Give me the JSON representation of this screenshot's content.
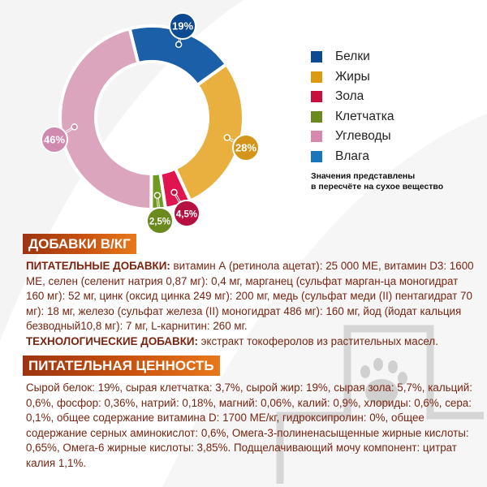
{
  "chart_data": {
    "type": "pie",
    "variant": "donut",
    "categories": [
      "Белки",
      "Жиры",
      "Зола",
      "Клетчатка",
      "Углеводы",
      "Влага"
    ],
    "values": [
      19,
      28,
      4.5,
      2.5,
      46,
      null
    ],
    "labels": [
      "19%",
      "28%",
      "4,5%",
      "2,5%",
      "46%",
      ""
    ],
    "colors": [
      "#1a5fa8",
      "#e9b040",
      "#e0144f",
      "#6f9a1f",
      "#dca5be",
      "#1b75bb"
    ],
    "label_colors": [
      "#0d4a94",
      "#d4961a",
      "#b5103f",
      "#6b8a1e",
      "#d08ab0",
      "#1b75bb"
    ],
    "legend_colors": [
      "#0d4a94",
      "#dc9a12",
      "#c8103f",
      "#6b8a1e",
      "#d88aae",
      "#1b75bb"
    ],
    "legend_placement": "right",
    "note": [
      "Значения представлены",
      "в пересчёте на сухое вещество"
    ]
  },
  "additives": {
    "title": "ДОБАВКИ В/КГ",
    "nutritional_label": "ПИТАТЕЛЬНЫЕ ДОБАВКИ:",
    "nutritional_text": " витамин А (ретинола ацетат): 25 000 МЕ, витамин D3: 1600 МЕ, селен (селенит натрия 0,87 мг): 0,4 мг, марганец (сульфат марган-ца моногидрат 160 мг): 52 мг, цинк (оксид цинка 249 мг): 200 мг, медь (сульфат меди (II) пентагидрат 70 мг): 18 мг, железо (сульфат железа (II) моногидрат 486 мг): 160 мг, йод (йодат кальция безводный10,8 мг): 7 мг, L-карнитин: 260 мг.",
    "technological_label": "ТЕХНОЛОГИЧЕСКИЕ ДОБАВКИ:",
    "technological_text": " экстракт токоферолов из растительных масел."
  },
  "nutrition": {
    "title": "ПИТАТЕЛЬНАЯ ЦЕННОСТЬ",
    "text": "Сырой белок: 19%, сырая клетчатка: 3,7%, сырой жир: 19%, сырая зола: 5,7%, кальций: 0,6%, фосфор: 0,36%, натрий: 0,18%, магний: 0,06%, калий: 0,9%, хлориды: 0,6%, сера: 0,1%, общее содержание витамина D: 1700 МЕ/кг, гидроксипролин: 0%, общее содержание серных аминокислот: 0,6%, Омега-3-полиненасыщенные жирные кислоты: 0,65%, Омега-6 жирные кислоты: 3,85%. Подщелачивающий мочу компонент: цитрат калия 1,1%."
  }
}
